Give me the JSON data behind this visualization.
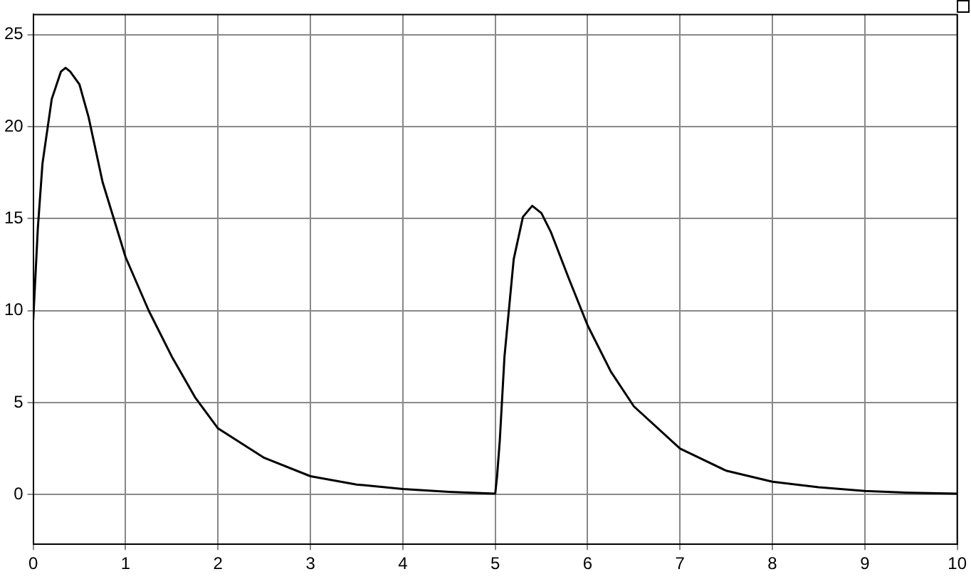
{
  "chart_data": {
    "type": "line",
    "x": [
      0,
      0.05,
      0.1,
      0.2,
      0.3,
      0.35,
      0.4,
      0.5,
      0.6,
      0.75,
      1,
      1.25,
      1.5,
      1.75,
      2,
      2.5,
      3,
      3.5,
      4,
      4.5,
      5,
      5.02,
      5.05,
      5.1,
      5.2,
      5.3,
      5.4,
      5.5,
      5.6,
      5.8,
      6,
      6.25,
      6.5,
      7,
      7.5,
      8,
      8.5,
      9,
      9.5,
      10
    ],
    "series": [
      {
        "color": "#000000",
        "values": [
          9.5,
          14.5,
          18,
          21.5,
          23,
          23.2,
          23,
          22.3,
          20.5,
          17,
          12.9,
          10,
          7.5,
          5.3,
          3.6,
          2,
          1,
          0.55,
          0.3,
          0.15,
          0.05,
          1,
          3,
          7.5,
          12.8,
          15.1,
          15.7,
          15.3,
          14.3,
          11.7,
          9.2,
          6.7,
          4.8,
          2.5,
          1.3,
          0.7,
          0.4,
          0.2,
          0.1,
          0.05
        ]
      }
    ],
    "xlim": [
      0,
      10
    ],
    "xticks": [
      0,
      1,
      2,
      3,
      4,
      5,
      6,
      7,
      8,
      9,
      10
    ],
    "ylim": [
      -2.7,
      26.1
    ],
    "yticks": [
      0,
      5,
      10,
      15,
      20,
      25
    ],
    "grid": true,
    "legend": false,
    "marker": "none",
    "line_style": "solid"
  }
}
